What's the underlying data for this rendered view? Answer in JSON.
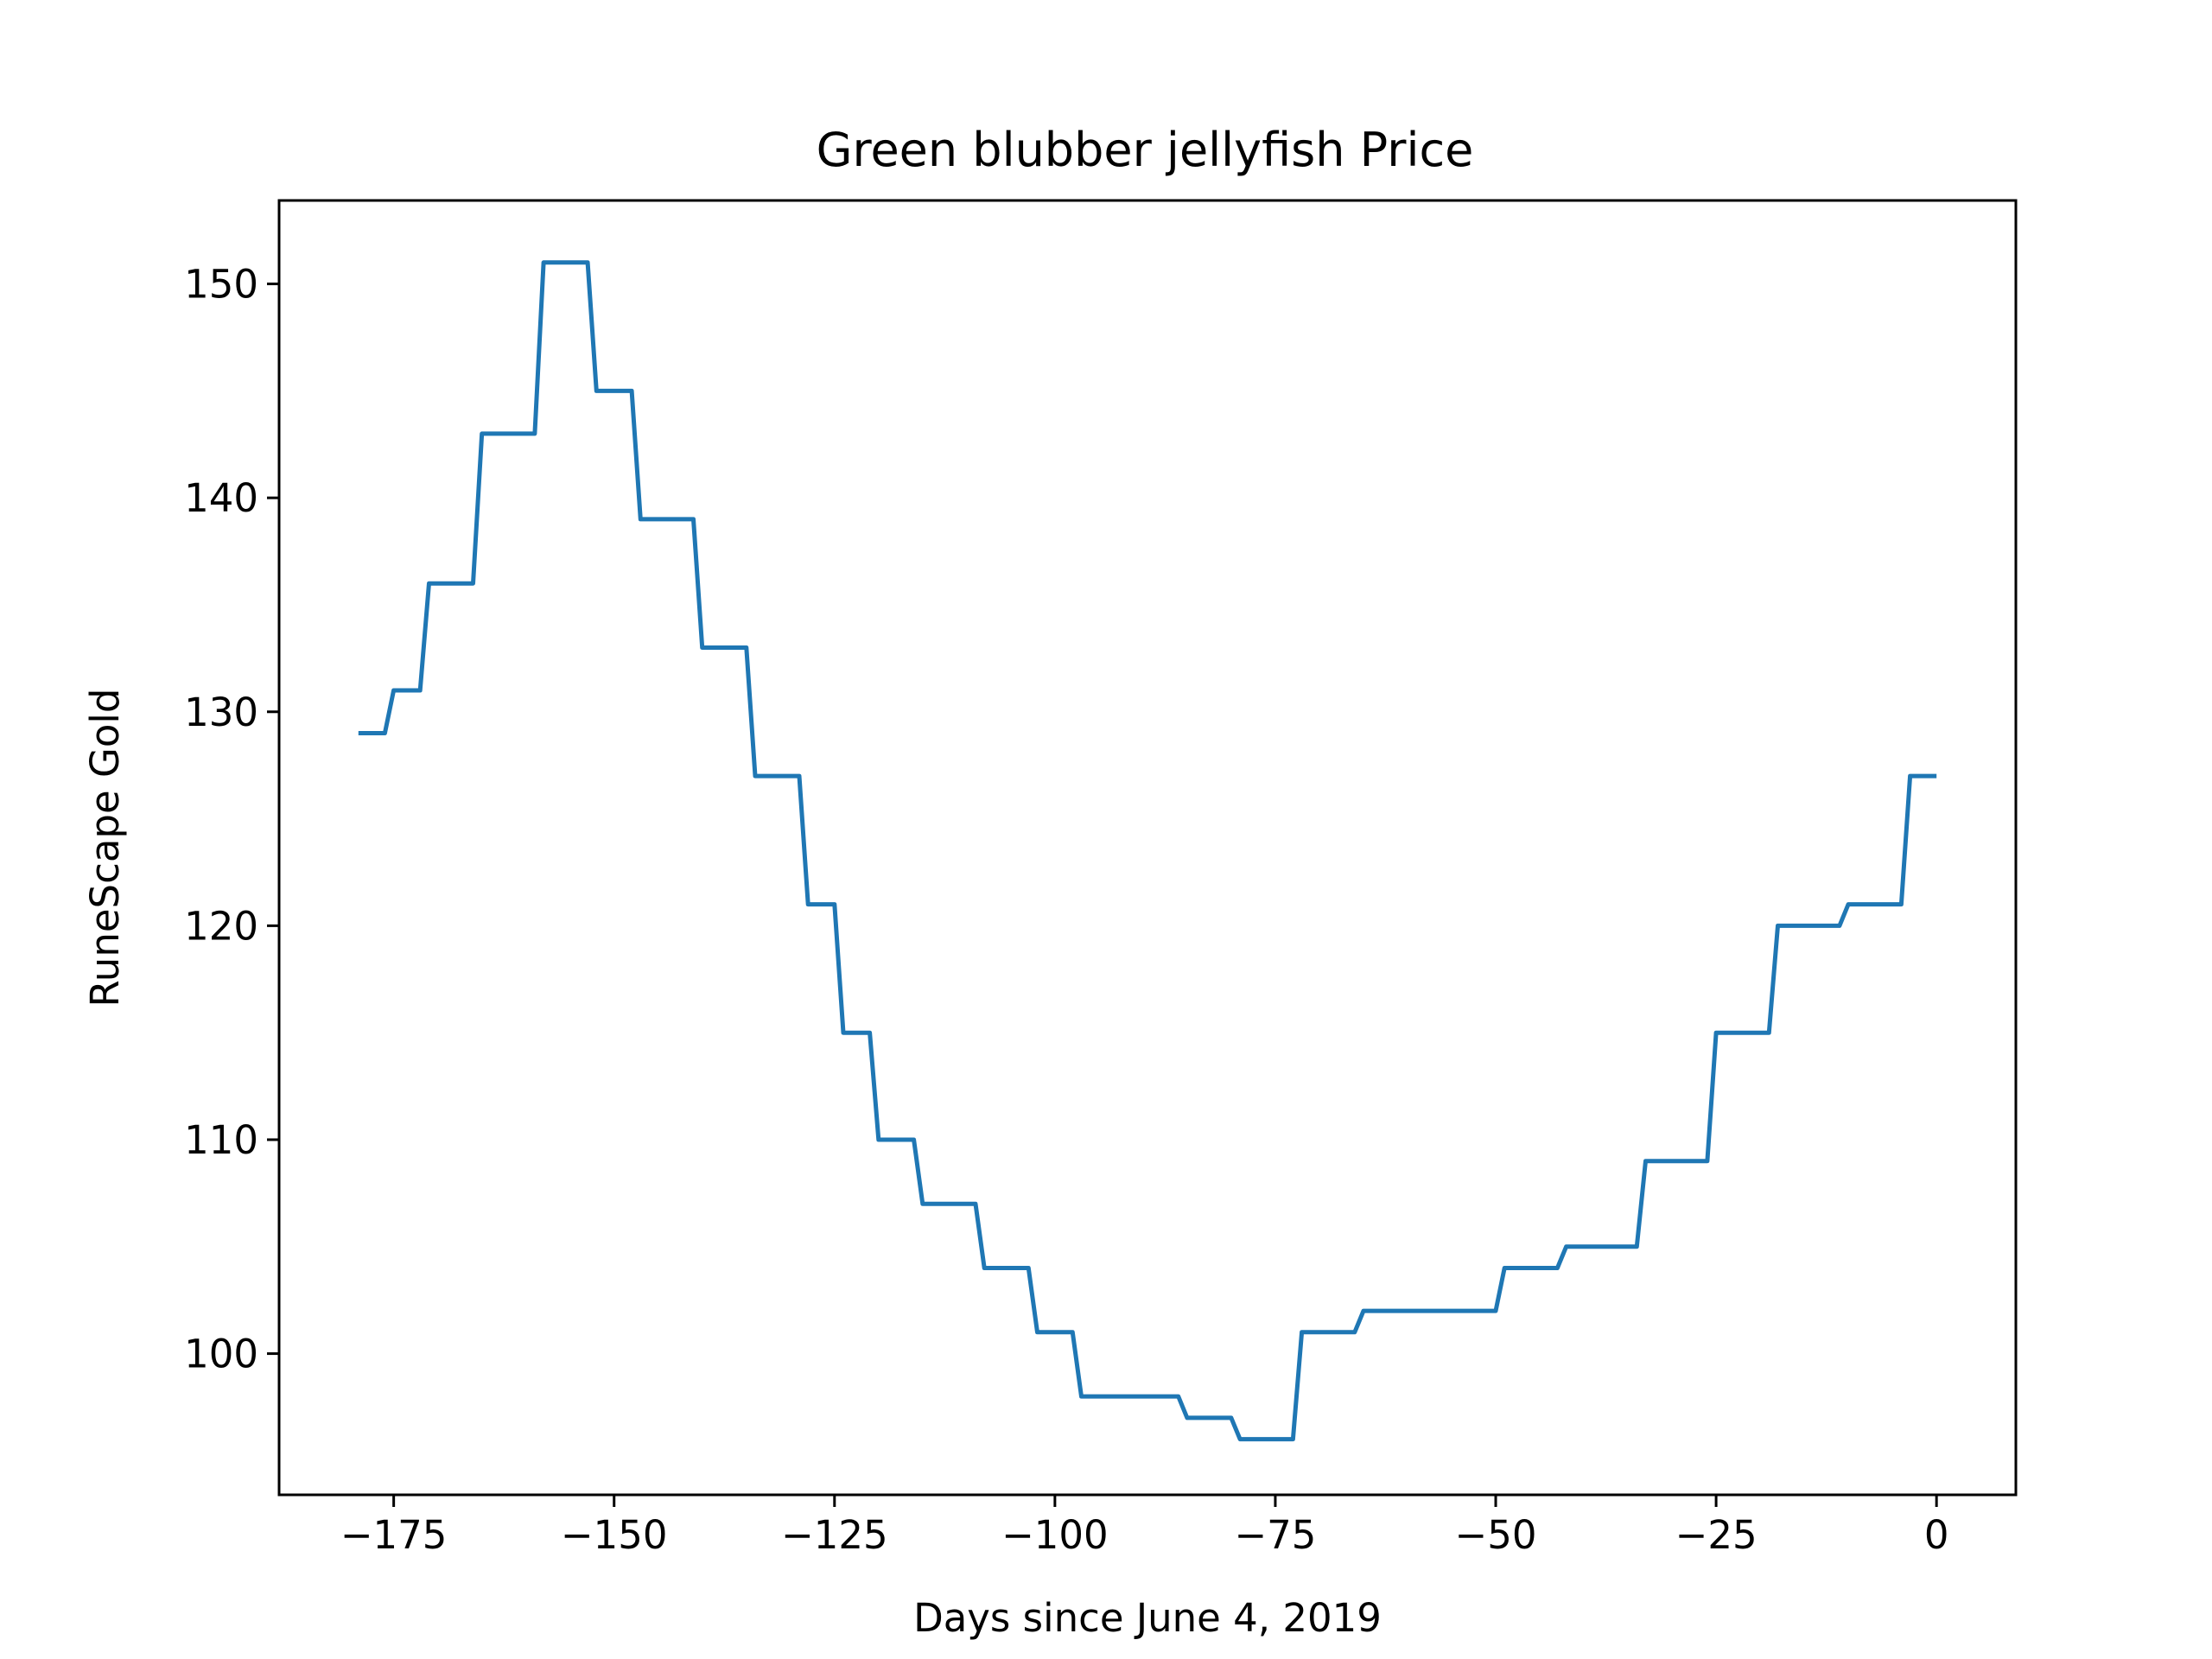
{
  "chart_data": {
    "type": "line",
    "title": "Green blubber jellyfish Price",
    "xlabel": "Days since June 4, 2019",
    "ylabel": "RuneScape Gold",
    "xlim": [
      -188,
      9
    ],
    "ylim": [
      93.4,
      153.9
    ],
    "x_ticks": [
      -175,
      -150,
      -125,
      -100,
      -75,
      -50,
      -25,
      0
    ],
    "x_tick_labels": [
      "−175",
      "−150",
      "−125",
      "−100",
      "−75",
      "−50",
      "−25",
      "0"
    ],
    "y_ticks": [
      100,
      110,
      120,
      130,
      140,
      150
    ],
    "y_tick_labels": [
      "100",
      "110",
      "120",
      "130",
      "140",
      "150"
    ],
    "grid": false,
    "legend": "none",
    "series": [
      {
        "color": "#1f77b4",
        "x": [
          -179,
          -176,
          -175,
          -172,
          -171,
          -166,
          -165,
          -159,
          -158,
          -153,
          -152,
          -148,
          -147,
          -141,
          -140,
          -135,
          -134,
          -129,
          -128,
          -125,
          -124,
          -121,
          -120,
          -116,
          -115,
          -109,
          -108,
          -103,
          -102,
          -98,
          -97,
          -86,
          -85,
          -80,
          -79,
          -73,
          -72,
          -66,
          -65,
          -50,
          -49,
          -43,
          -42,
          -34,
          -33,
          -26,
          -25,
          -19,
          -18,
          -11,
          -10,
          -4,
          -3,
          0
        ],
        "y": [
          129,
          129,
          131,
          131,
          136,
          136,
          143,
          143,
          151,
          151,
          145,
          145,
          139,
          139,
          133,
          133,
          127,
          127,
          121,
          121,
          115,
          115,
          110,
          110,
          107,
          107,
          104,
          104,
          101,
          101,
          98,
          98,
          97,
          97,
          96,
          96,
          101,
          101,
          102,
          102,
          104,
          104,
          105,
          105,
          109,
          109,
          115,
          115,
          120,
          120,
          121,
          121,
          127,
          127
        ]
      }
    ]
  }
}
